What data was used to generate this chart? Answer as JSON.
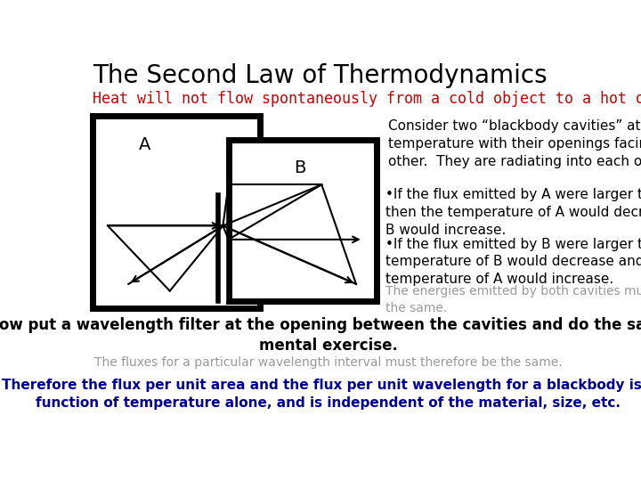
{
  "title": "The Second Law of Thermodynamics",
  "subtitle": "Heat will not flow spontaneously from a cold object to a hot object.",
  "subtitle_color": "#cc0000",
  "subtitle_font": "monospace",
  "box_A_label": "A",
  "box_B_label": "B",
  "text_consider": "Consider two “blackbody cavities” at equal\ntemperature with their openings facing each\nother.  They are radiating into each other.",
  "text_if1": "•If the flux emitted by A were larger than B\nthen the temperature of A would decrease and\nB would increase.",
  "text_if2": "•If the flux emitted by B were larger then the\ntemperature of B would decrease and the\ntemperature of A would increase.",
  "text_energies": "The energies emitted by both cavities must be\nthe same.",
  "text_now": "Now put a wavelength filter at the opening between the cavities and do the same\nmental exercise.",
  "text_fluxes": "The fluxes for a particular wavelength interval must therefore be the same.",
  "text_therefore": "Therefore the flux per unit area and the flux per unit wavelength for a blackbody is a\nfunction of temperature alone, and is independent of the material, size, etc.",
  "color_black": "#000000",
  "color_gray": "#999999",
  "color_blue": "#000099",
  "background_color": "#ffffff",
  "title_fontsize": 20,
  "subtitle_fontsize": 12,
  "body_fontsize": 11,
  "small_fontsize": 10
}
